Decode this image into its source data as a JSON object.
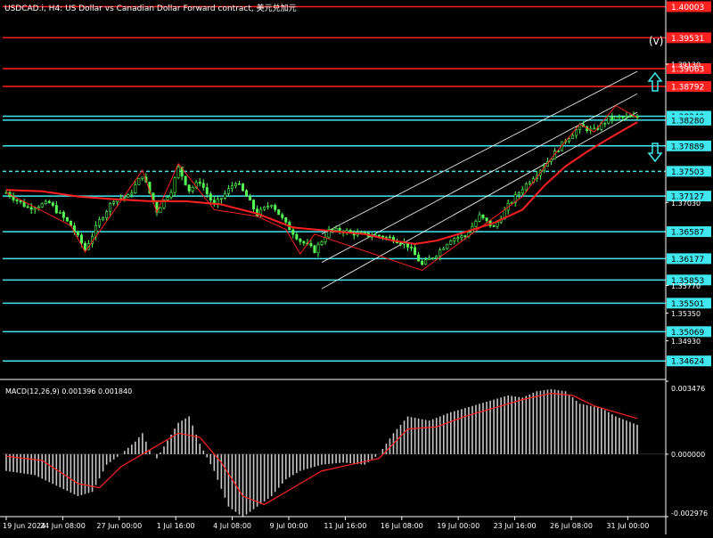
{
  "header": {
    "title": "USDCAD.i, H4:  US Dollar vs Canadian Dollar Forward contract, 美元兑加元"
  },
  "colors": {
    "background": "#000000",
    "candle": "#55ff55",
    "ma": "#ff2020",
    "red_level": "#ff2020",
    "cyan_level": "#3fe8ef",
    "channel": "#ffffff",
    "macd_hist": "#c8c8c8",
    "macd_signal": "#ff2020",
    "arrow": "#3fe8ef"
  },
  "wave_label": "(v)",
  "macd_label": "MACD(12,26,9) 0.001396 0.001840",
  "chart_data": [
    {
      "type": "line",
      "name": "price",
      "ylim": [
        1.3437,
        1.4005
      ],
      "axis_labels": [
        "1.40003",
        "1.39531",
        "1.39063",
        "1.38792",
        "1.38340",
        "1.38280",
        "1.37889",
        "1.37503",
        "1.37127",
        "1.37030",
        "1.36587",
        "1.36177",
        "1.35853",
        "1.35770",
        "1.35501",
        "1.35350",
        "1.35069",
        "1.34930",
        "1.34624"
      ],
      "red_levels": [
        {
          "price": 1.40003,
          "label": "1.40003"
        },
        {
          "price": 1.39531,
          "label": "1.39531"
        },
        {
          "price": 1.39063,
          "label": "1.39063"
        },
        {
          "price": 1.38792,
          "label": "1.38792"
        }
      ],
      "cyan_levels": [
        {
          "price": 1.3834,
          "label": "1.38340",
          "style": "solid"
        },
        {
          "price": 1.3828,
          "label": "1.38280",
          "style": "solid"
        },
        {
          "price": 1.37889,
          "label": "1.37889",
          "style": "solid"
        },
        {
          "price": 1.37503,
          "label": "1.37503",
          "style": "dashed"
        },
        {
          "price": 1.37127,
          "label": "1.37127",
          "style": "solid"
        },
        {
          "price": 1.36587,
          "label": "1.36587",
          "style": "solid"
        },
        {
          "price": 1.36177,
          "label": "1.36177",
          "style": "solid"
        },
        {
          "price": 1.35853,
          "label": "1.35853",
          "style": "solid"
        },
        {
          "price": 1.35501,
          "label": "1.35501",
          "style": "solid"
        },
        {
          "price": 1.35069,
          "label": "1.35069",
          "style": "solid"
        },
        {
          "price": 1.34624,
          "label": "1.34624",
          "style": "solid"
        }
      ],
      "plain_ticks": [
        "1.39130",
        "1.37030",
        "1.35770",
        "1.35350",
        "1.34930"
      ],
      "x_labels": [
        "19 Jun 2024",
        "24 Jun 08:00",
        "27 Jun 00:00",
        "1 Jul 16:00",
        "4 Jul 08:00",
        "9 Jul 00:00",
        "11 Jul 16:00",
        "16 Jul 08:00",
        "19 Jul 00:00",
        "23 Jul 16:00",
        "26 Jul 08:00",
        "31 Jul 00:00"
      ],
      "x_range": [
        0,
        176
      ],
      "close_path": [
        [
          0,
          1.3718
        ],
        [
          6,
          1.3695
        ],
        [
          12,
          1.3702
        ],
        [
          18,
          1.3668
        ],
        [
          22,
          1.3632
        ],
        [
          26,
          1.3675
        ],
        [
          30,
          1.3708
        ],
        [
          34,
          1.3712
        ],
        [
          38,
          1.3745
        ],
        [
          42,
          1.369
        ],
        [
          46,
          1.3722
        ],
        [
          48,
          1.3755
        ],
        [
          51,
          1.3722
        ],
        [
          54,
          1.3735
        ],
        [
          58,
          1.3698
        ],
        [
          62,
          1.3722
        ],
        [
          64,
          1.3735
        ],
        [
          67,
          1.3712
        ],
        [
          70,
          1.3685
        ],
        [
          74,
          1.3702
        ],
        [
          78,
          1.367
        ],
        [
          82,
          1.3645
        ],
        [
          86,
          1.363
        ],
        [
          90,
          1.366
        ],
        [
          94,
          1.366
        ],
        [
          98,
          1.3655
        ],
        [
          104,
          1.3652
        ],
        [
          108,
          1.3648
        ],
        [
          112,
          1.3638
        ],
        [
          116,
          1.3608
        ],
        [
          120,
          1.3625
        ],
        [
          124,
          1.3648
        ],
        [
          128,
          1.3652
        ],
        [
          132,
          1.3682
        ],
        [
          136,
          1.3665
        ],
        [
          140,
          1.3698
        ],
        [
          144,
          1.3725
        ],
        [
          148,
          1.3748
        ],
        [
          152,
          1.3772
        ],
        [
          156,
          1.3798
        ],
        [
          160,
          1.3818
        ],
        [
          164,
          1.3812
        ],
        [
          168,
          1.383
        ],
        [
          172,
          1.3832
        ],
        [
          176,
          1.3832
        ]
      ],
      "ma_path": [
        [
          0,
          1.3722
        ],
        [
          10,
          1.372
        ],
        [
          20,
          1.3712
        ],
        [
          30,
          1.3708
        ],
        [
          40,
          1.3705
        ],
        [
          50,
          1.3705
        ],
        [
          60,
          1.37
        ],
        [
          70,
          1.3686
        ],
        [
          80,
          1.3665
        ],
        [
          90,
          1.366
        ],
        [
          100,
          1.3655
        ],
        [
          108,
          1.3645
        ],
        [
          114,
          1.364
        ],
        [
          120,
          1.3645
        ],
        [
          128,
          1.3658
        ],
        [
          136,
          1.3672
        ],
        [
          144,
          1.3692
        ],
        [
          150,
          1.3728
        ],
        [
          156,
          1.3758
        ],
        [
          162,
          1.378
        ],
        [
          168,
          1.38
        ],
        [
          176,
          1.3825
        ]
      ],
      "zigzag": [
        [
          0,
          1.3718
        ],
        [
          18,
          1.3668
        ],
        [
          22,
          1.3628
        ],
        [
          38,
          1.3752
        ],
        [
          42,
          1.3688
        ],
        [
          48,
          1.3762
        ],
        [
          58,
          1.3692
        ],
        [
          70,
          1.3682
        ],
        [
          78,
          1.3662
        ],
        [
          82,
          1.3625
        ],
        [
          86,
          1.3655
        ],
        [
          116,
          1.36
        ],
        [
          144,
          1.3712
        ],
        [
          152,
          1.377
        ],
        [
          160,
          1.3822
        ],
        [
          164,
          1.381
        ],
        [
          170,
          1.385
        ],
        [
          176,
          1.3832
        ]
      ],
      "channel": {
        "upper": [
          [
            88,
            1.3655
          ],
          [
            176,
            1.3902
          ]
        ],
        "lower": [
          [
            88,
            1.3572
          ],
          [
            176,
            1.384
          ]
        ],
        "mid": [
          [
            88,
            1.3612
          ],
          [
            176,
            1.3868
          ]
        ]
      }
    },
    {
      "type": "bar",
      "name": "MACD(12,26,9)",
      "ylim": [
        -0.002976,
        0.003476
      ],
      "axis_labels": [
        "0.003476",
        "0.000000",
        "-0.002976"
      ],
      "main": 0.001396,
      "signal": 0.00184,
      "hist_path": [
        [
          0,
          -0.0008
        ],
        [
          8,
          -0.001
        ],
        [
          14,
          -0.0015
        ],
        [
          20,
          -0.002
        ],
        [
          24,
          -0.0018
        ],
        [
          28,
          -0.0005
        ],
        [
          32,
          0.0
        ],
        [
          36,
          0.0006
        ],
        [
          38,
          0.001
        ],
        [
          40,
          0.0002
        ],
        [
          42,
          -0.0002
        ],
        [
          48,
          0.0015
        ],
        [
          51,
          0.0018
        ],
        [
          54,
          0.0005
        ],
        [
          58,
          -0.0008
        ],
        [
          62,
          -0.0025
        ],
        [
          66,
          -0.003
        ],
        [
          70,
          -0.0025
        ],
        [
          74,
          -0.002
        ],
        [
          78,
          -0.0012
        ],
        [
          82,
          -0.0008
        ],
        [
          88,
          -0.0005
        ],
        [
          94,
          -0.0004
        ],
        [
          100,
          -0.0005
        ],
        [
          104,
          0.0
        ],
        [
          108,
          0.001
        ],
        [
          112,
          0.0018
        ],
        [
          118,
          0.0016
        ],
        [
          124,
          0.002
        ],
        [
          128,
          0.0022
        ],
        [
          132,
          0.0024
        ],
        [
          136,
          0.0026
        ],
        [
          140,
          0.0028
        ],
        [
          144,
          0.0027
        ],
        [
          148,
          0.003
        ],
        [
          152,
          0.0031
        ],
        [
          156,
          0.003
        ],
        [
          160,
          0.0024
        ],
        [
          166,
          0.0022
        ],
        [
          170,
          0.0018
        ],
        [
          176,
          0.0014
        ]
      ],
      "signal_path": [
        [
          0,
          -0.0001
        ],
        [
          10,
          -0.0003
        ],
        [
          20,
          -0.0014
        ],
        [
          26,
          -0.0016
        ],
        [
          32,
          -0.0006
        ],
        [
          40,
          0.0002
        ],
        [
          48,
          0.001
        ],
        [
          54,
          0.0008
        ],
        [
          60,
          -0.0004
        ],
        [
          66,
          -0.002
        ],
        [
          72,
          -0.0024
        ],
        [
          80,
          -0.0016
        ],
        [
          88,
          -0.0008
        ],
        [
          96,
          -0.0005
        ],
        [
          104,
          -0.0002
        ],
        [
          112,
          0.0012
        ],
        [
          120,
          0.0013
        ],
        [
          128,
          0.0018
        ],
        [
          136,
          0.0022
        ],
        [
          144,
          0.0026
        ],
        [
          152,
          0.0029
        ],
        [
          158,
          0.0028
        ],
        [
          164,
          0.0023
        ],
        [
          170,
          0.002
        ],
        [
          176,
          0.0017
        ]
      ]
    }
  ]
}
